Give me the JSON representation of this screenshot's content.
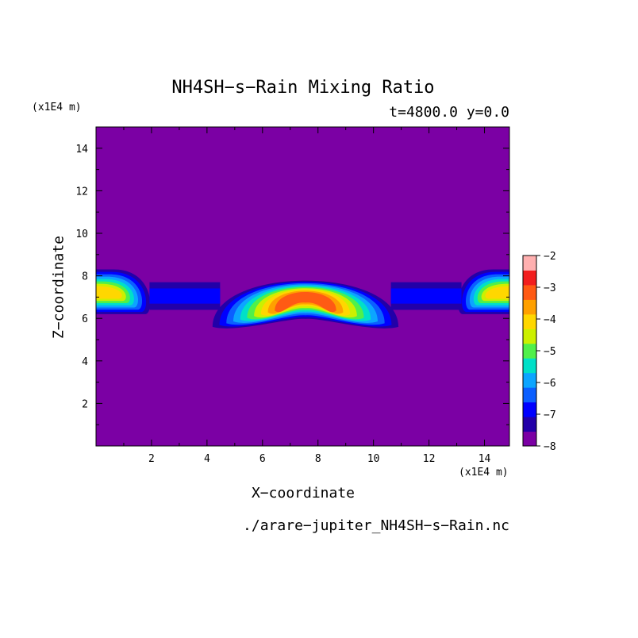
{
  "chart_data": {
    "type": "heatmap",
    "title": "NH4SH−s−Rain Mixing Ratio",
    "subtitle": "t=4800.0 y=0.0",
    "xlabel": "X−coordinate",
    "ylabel": "Z−coordinate",
    "x_unit": "(x1E4 m)",
    "y_unit": "(x1E4 m)",
    "source_file": "./arare−jupiter_NH4SH−s−Rain.nc",
    "xlim": [
      0,
      14.9
    ],
    "ylim": [
      0,
      15
    ],
    "x_ticks": [
      "2",
      "4",
      "6",
      "8",
      "10",
      "12",
      "14"
    ],
    "y_ticks": [
      "2",
      "4",
      "6",
      "8",
      "10",
      "12",
      "14"
    ],
    "background_level": -8,
    "colorbar": {
      "range": [
        -8,
        -2
      ],
      "ticks": [
        "−2",
        "−3",
        "−4",
        "−5",
        "−6",
        "−7",
        "−8"
      ],
      "colors": [
        "#7b00a4",
        "#2200a8",
        "#0000ff",
        "#0b5fff",
        "#0ca5ff",
        "#00e0c8",
        "#50f04a",
        "#ccf000",
        "#ffd700",
        "#ffa000",
        "#ff5a14",
        "#f21e1e",
        "#ffb0b0"
      ]
    },
    "features": [
      {
        "name": "left-edge-layer",
        "x": [
          0.0,
          2.1
        ],
        "z_base": 6.2,
        "z_top": 8.3,
        "core_level": -4
      },
      {
        "name": "central-dome",
        "x": [
          4.2,
          10.9
        ],
        "z_base": 5.6,
        "z_top": 8.5,
        "core_level": -3
      },
      {
        "name": "right-edge-layer",
        "x": [
          12.9,
          14.9
        ],
        "z_base": 6.2,
        "z_top": 8.3,
        "core_level": -4
      },
      {
        "name": "thin-band-left",
        "x": [
          2.1,
          4.3
        ],
        "z_base": 6.4,
        "z_top": 7.7,
        "core_level": -7
      },
      {
        "name": "thin-band-right",
        "x": [
          10.8,
          13.0
        ],
        "z_base": 6.4,
        "z_top": 7.7,
        "core_level": -7
      }
    ]
  }
}
